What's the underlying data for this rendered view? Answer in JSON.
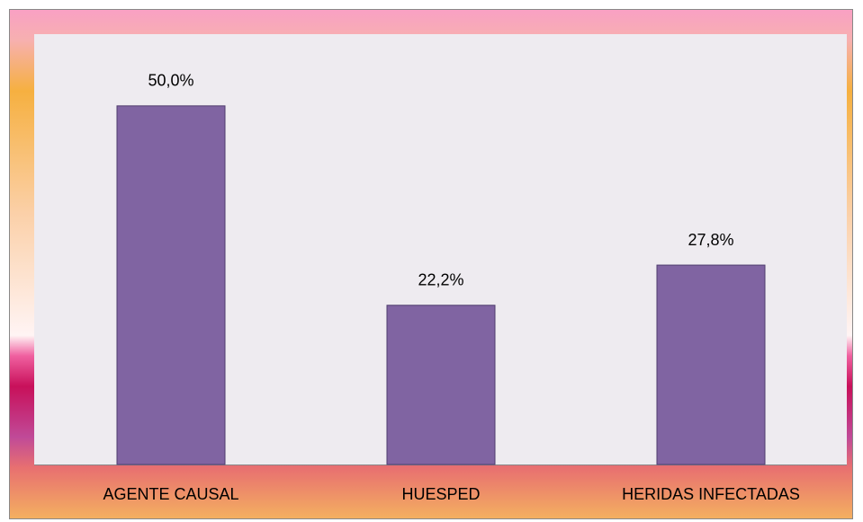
{
  "chart_data": {
    "type": "bar",
    "categories": [
      "AGENTE CAUSAL",
      "HUESPED",
      "HERIDAS INFECTADAS"
    ],
    "values": [
      50.0,
      22.2,
      27.8
    ],
    "value_labels": [
      "50,0%",
      "22,2%",
      "27,8%"
    ],
    "color": "#8064a2",
    "ylim": [
      0,
      60
    ]
  }
}
